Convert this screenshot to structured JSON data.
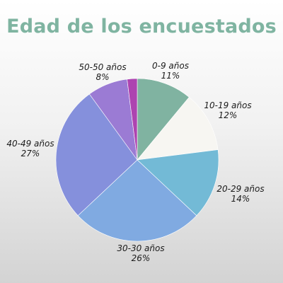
{
  "title": "Edad de los encuestados",
  "chart_data": {
    "type": "pie",
    "title": "Edad de los encuestados",
    "slices": [
      {
        "label": "0-9 años",
        "percent_text": "11%",
        "value": 11,
        "color": "#80b3a1"
      },
      {
        "label": "10-19 años",
        "percent_text": "12%",
        "value": 12,
        "color": "#f7f6f2"
      },
      {
        "label": "20-29 años",
        "percent_text": "14%",
        "value": 14,
        "color": "#73bad6"
      },
      {
        "label": "30-30 años",
        "percent_text": "26%",
        "value": 26,
        "color": "#80aae1"
      },
      {
        "label": "40-49 años",
        "percent_text": "27%",
        "value": 27,
        "color": "#8590dc"
      },
      {
        "label": "50-50 años",
        "percent_text": "8%",
        "value": 8,
        "color": "#9b7bd4"
      },
      {
        "label": "",
        "percent_text": "",
        "value": 2,
        "color": "#ad44b0"
      }
    ],
    "start_angle_deg": 0,
    "direction": "clockwise",
    "legend": "none"
  }
}
